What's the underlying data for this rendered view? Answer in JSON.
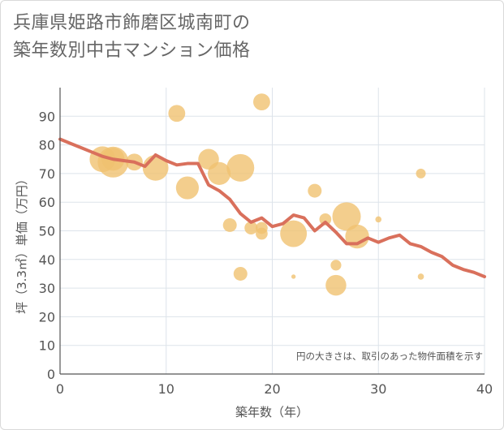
{
  "title_lines": [
    "兵庫県姫路市飾磨区城南町の",
    "築年数別中古マンション価格"
  ],
  "chart_data": {
    "type": "scatter",
    "title": "兵庫県姫路市飾磨区城南町の築年数別中古マンション価格",
    "xlabel": "築年数（年）",
    "ylabel": "坪（3.3㎡）単価（万円）",
    "xlim": [
      0,
      40
    ],
    "ylim": [
      0,
      100
    ],
    "x_ticks": [
      0,
      10,
      20,
      30,
      40
    ],
    "y_ticks": [
      0,
      10,
      20,
      30,
      40,
      50,
      60,
      70,
      80,
      90
    ],
    "grid": true,
    "annotation": "円の大きさは、取引のあった物件面積を示す",
    "colors": {
      "bubble": "#f0c270",
      "line": "#d9705c",
      "grid": "#dde3ea",
      "axis": "#555555"
    },
    "bubbles": [
      {
        "x": 4,
        "y": 75,
        "size": 70
      },
      {
        "x": 5,
        "y": 74,
        "size": 100
      },
      {
        "x": 5,
        "y": 75,
        "size": 55
      },
      {
        "x": 7,
        "y": 74,
        "size": 30
      },
      {
        "x": 9,
        "y": 72,
        "size": 70
      },
      {
        "x": 11,
        "y": 91,
        "size": 30
      },
      {
        "x": 12,
        "y": 65,
        "size": 55
      },
      {
        "x": 14,
        "y": 75,
        "size": 45
      },
      {
        "x": 15,
        "y": 70,
        "size": 55
      },
      {
        "x": 17,
        "y": 72,
        "size": 80
      },
      {
        "x": 16,
        "y": 52,
        "size": 20
      },
      {
        "x": 17,
        "y": 35,
        "size": 20
      },
      {
        "x": 18,
        "y": 51,
        "size": 18
      },
      {
        "x": 19,
        "y": 95,
        "size": 30
      },
      {
        "x": 19,
        "y": 51,
        "size": 15
      },
      {
        "x": 19,
        "y": 49,
        "size": 15
      },
      {
        "x": 22,
        "y": 49,
        "size": 75
      },
      {
        "x": 22,
        "y": 34,
        "size": 2
      },
      {
        "x": 24,
        "y": 64,
        "size": 20
      },
      {
        "x": 25,
        "y": 54,
        "size": 15
      },
      {
        "x": 26,
        "y": 38,
        "size": 12
      },
      {
        "x": 26,
        "y": 31,
        "size": 45
      },
      {
        "x": 27,
        "y": 55,
        "size": 85
      },
      {
        "x": 28,
        "y": 48,
        "size": 60
      },
      {
        "x": 30,
        "y": 54,
        "size": 4
      },
      {
        "x": 34,
        "y": 70,
        "size": 10
      },
      {
        "x": 34,
        "y": 34,
        "size": 4
      }
    ],
    "series": [
      {
        "x": [
          0,
          1,
          2,
          3,
          4,
          5,
          6,
          7,
          8,
          9,
          10,
          11,
          12,
          13,
          14,
          15,
          16,
          17,
          18,
          19,
          20,
          21,
          22,
          23,
          24,
          25,
          26,
          27,
          28,
          29,
          30,
          31,
          32,
          33,
          34,
          35,
          36,
          37,
          38,
          39,
          40
        ],
        "values": [
          82,
          80.5,
          79,
          77.5,
          76,
          75,
          74.5,
          74,
          72.5,
          76.5,
          74.5,
          73,
          73.5,
          73.5,
          66,
          64,
          61,
          56,
          53,
          54.5,
          51.5,
          52.5,
          55.5,
          54.5,
          50,
          53,
          49.5,
          45.5,
          45.5,
          47.5,
          46,
          47.5,
          48.5,
          45.5,
          44.5,
          42.5,
          41,
          38,
          36.5,
          35.5,
          34
        ]
      }
    ]
  }
}
